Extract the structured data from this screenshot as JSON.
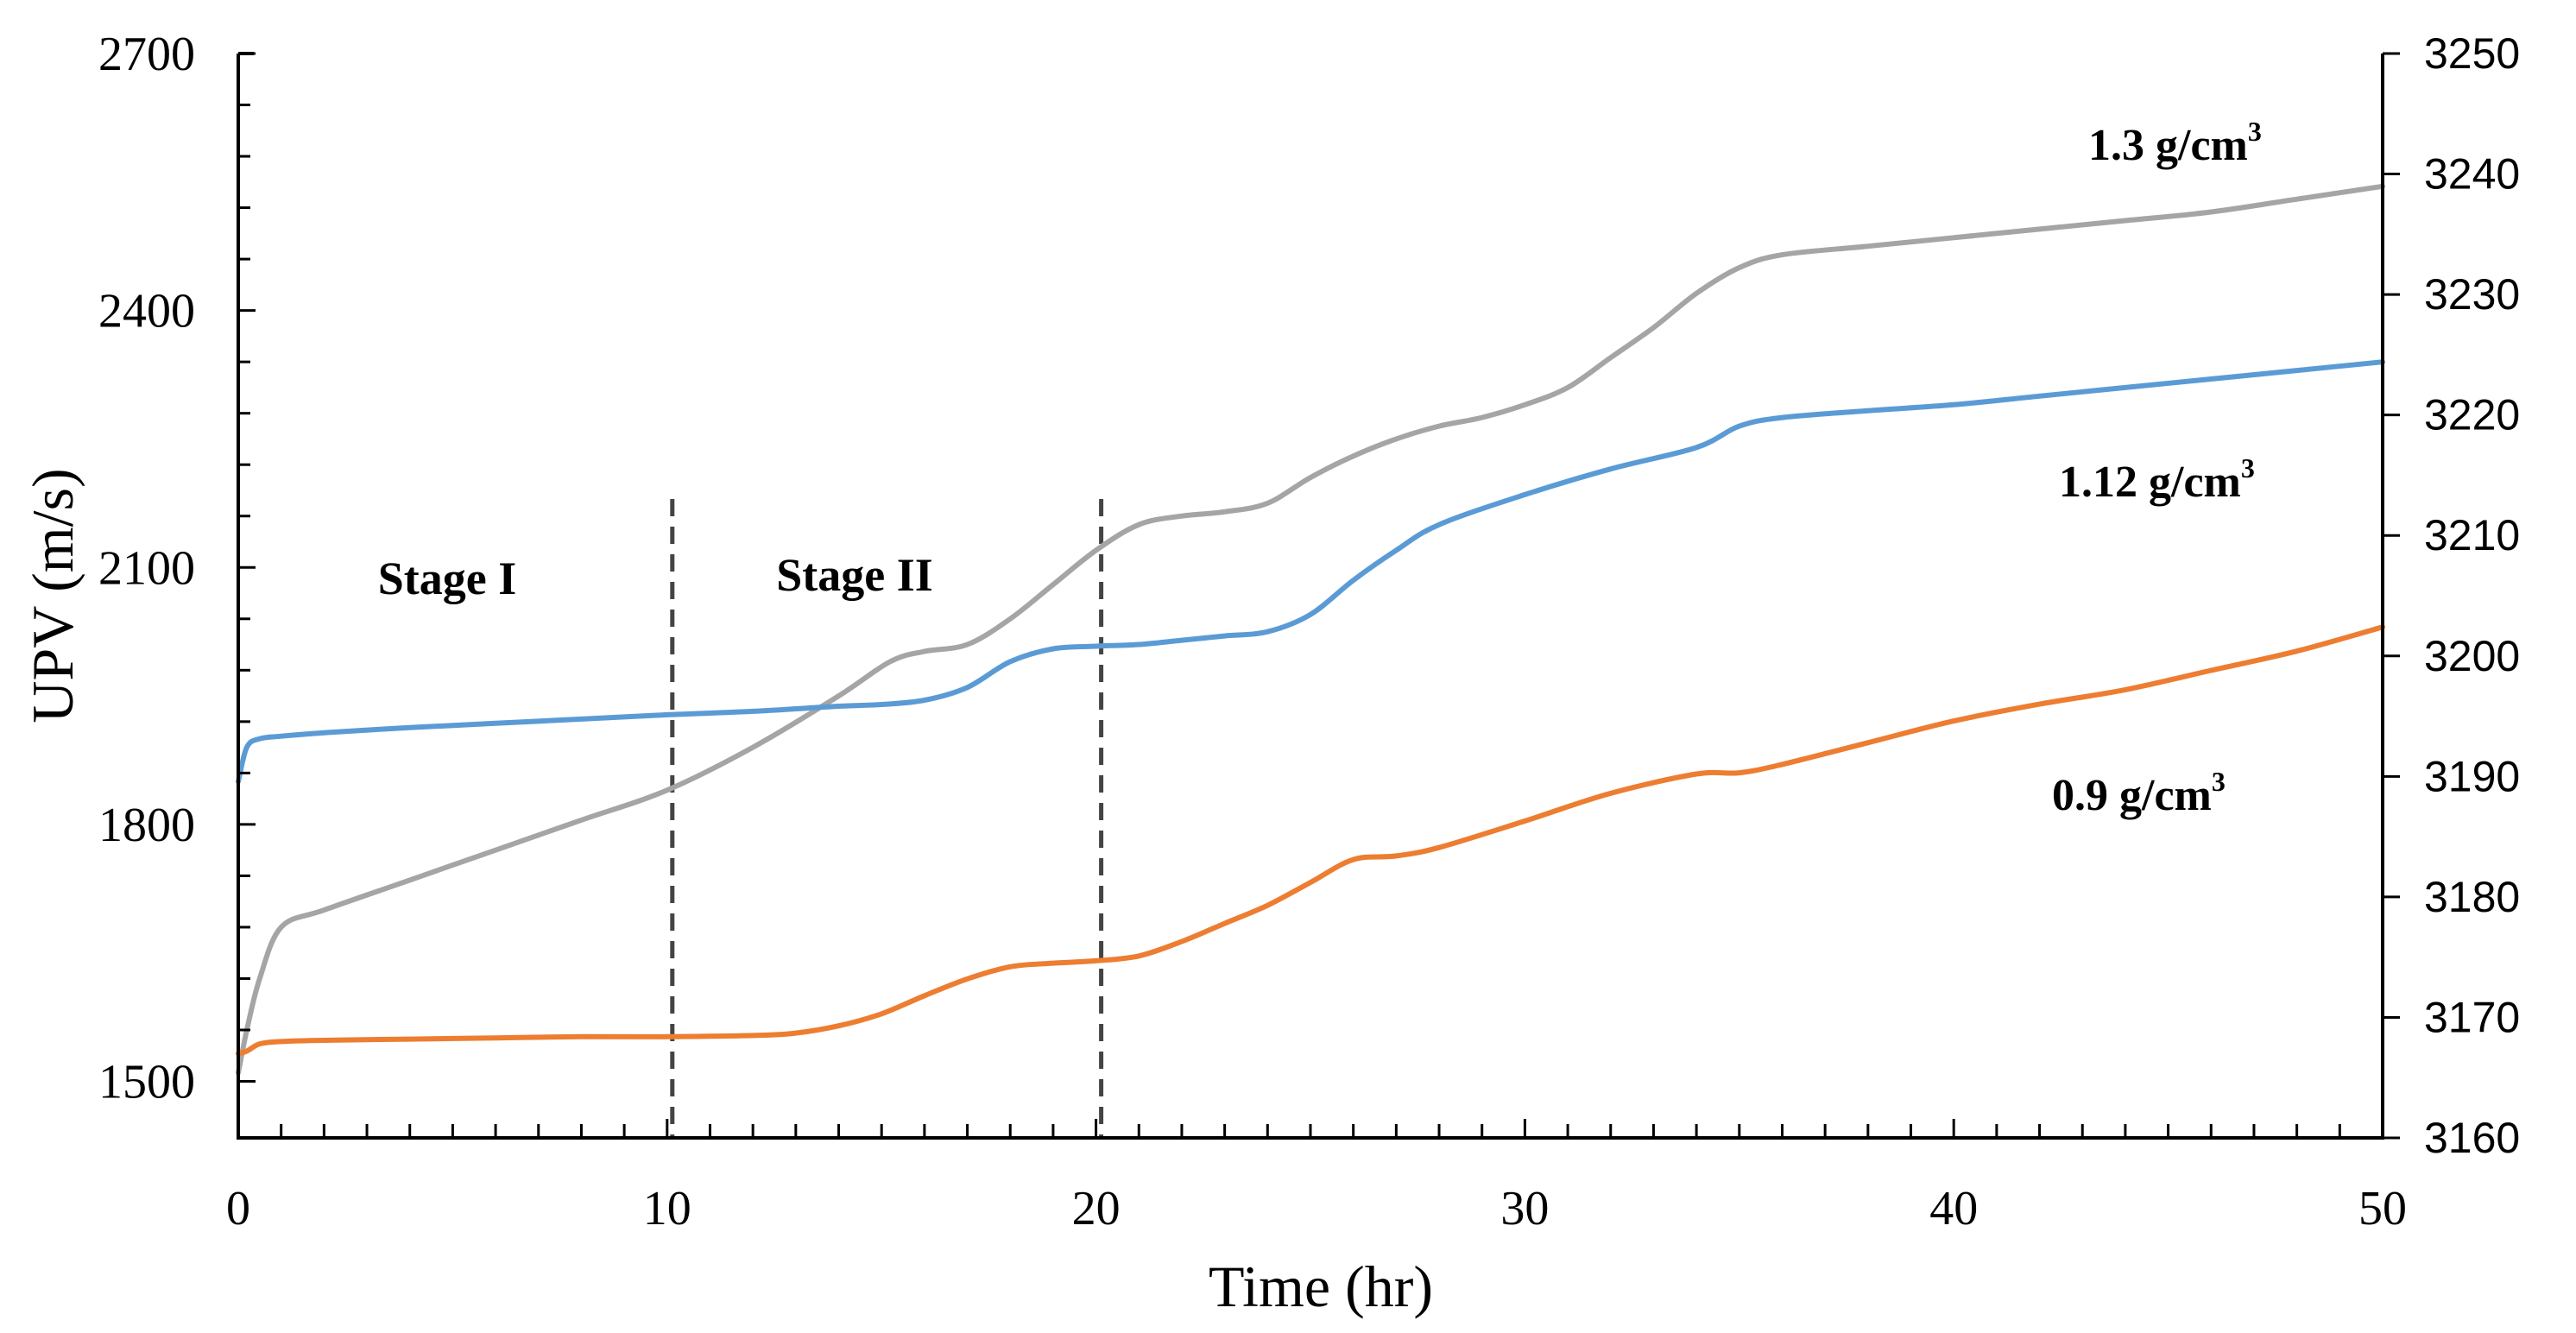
{
  "chart_data": {
    "type": "line",
    "xlabel": "Time (hr)",
    "ylabel": "UPV (m/s)",
    "x_ticks": [
      0,
      10,
      20,
      30,
      40,
      50
    ],
    "xlim": [
      0,
      50
    ],
    "ylim_left": [
      1434,
      2700
    ],
    "y_ticks_left": [
      1500,
      1800,
      2100,
      2400,
      2700
    ],
    "ylim_right": [
      3160,
      3250
    ],
    "y_ticks_right": [
      3160,
      3170,
      3180,
      3190,
      3200,
      3210,
      3220,
      3230,
      3240,
      3250
    ],
    "stage_dividers": [
      10,
      20
    ],
    "stage_labels": [
      "Stage I",
      "Stage II"
    ],
    "series": [
      {
        "name": "1.3 g/cm",
        "sup": "3",
        "color": "#A5A5A5",
        "x": [
          0,
          0.2,
          0.5,
          1,
          2,
          4,
          6,
          8,
          10,
          12,
          14,
          15.2,
          16,
          17,
          18,
          19,
          20,
          21,
          22,
          23,
          24,
          25,
          26,
          27,
          28,
          29,
          30,
          31,
          32,
          33,
          34,
          35,
          36,
          38,
          40,
          42,
          44,
          46,
          48,
          50
        ],
        "values": [
          1510,
          1560,
          1620,
          1680,
          1700,
          1735,
          1770,
          1805,
          1840,
          1890,
          1950,
          1990,
          2002,
          2010,
          2040,
          2080,
          2120,
          2150,
          2160,
          2165,
          2175,
          2205,
          2230,
          2250,
          2265,
          2275,
          2290,
          2310,
          2345,
          2380,
          2420,
          2450,
          2465,
          2475,
          2485,
          2495,
          2505,
          2515,
          2530,
          2545
        ]
      },
      {
        "name": "1.12 g/cm",
        "sup": "3",
        "color": "#5B9BD5",
        "x": [
          0,
          0.2,
          0.5,
          1,
          2,
          4,
          6,
          8,
          10,
          12,
          14,
          15,
          16,
          17,
          18,
          19,
          20,
          21,
          22,
          23,
          24,
          25,
          26,
          27,
          28,
          30,
          32,
          34,
          35,
          36,
          38,
          40,
          42,
          44,
          46,
          48,
          50
        ],
        "values": [
          1850,
          1890,
          1900,
          1903,
          1907,
          1913,
          1918,
          1923,
          1928,
          1932,
          1938,
          1940,
          1945,
          1960,
          1990,
          2005,
          2008,
          2010,
          2015,
          2020,
          2025,
          2045,
          2085,
          2120,
          2150,
          2185,
          2215,
          2240,
          2265,
          2275,
          2283,
          2290,
          2300,
          2310,
          2320,
          2330,
          2340
        ]
      },
      {
        "name": "0.9 g/cm",
        "sup": "3",
        "color": "#ED7D31",
        "x": [
          0,
          0.2,
          0.5,
          1,
          2,
          4,
          6,
          8,
          10,
          12,
          13,
          14,
          15,
          16,
          17,
          18,
          19,
          20,
          21,
          22,
          23,
          24,
          25,
          26,
          27,
          28,
          30,
          32,
          34,
          35,
          36,
          38,
          40,
          42,
          44,
          46,
          48,
          50
        ],
        "values": [
          3167,
          3167.2,
          3167.8,
          3168,
          3168.1,
          3168.2,
          3168.3,
          3168.4,
          3168.4,
          3168.5,
          3168.7,
          3169.3,
          3170.3,
          3171.8,
          3173.2,
          3174.2,
          3174.5,
          3174.7,
          3175.1,
          3176.3,
          3177.8,
          3179.3,
          3181.2,
          3183.1,
          3183.4,
          3184.1,
          3186.3,
          3188.6,
          3190.2,
          3190.3,
          3191,
          3192.8,
          3194.6,
          3196,
          3197.2,
          3198.8,
          3200.4,
          3202.4
        ]
      }
    ]
  }
}
